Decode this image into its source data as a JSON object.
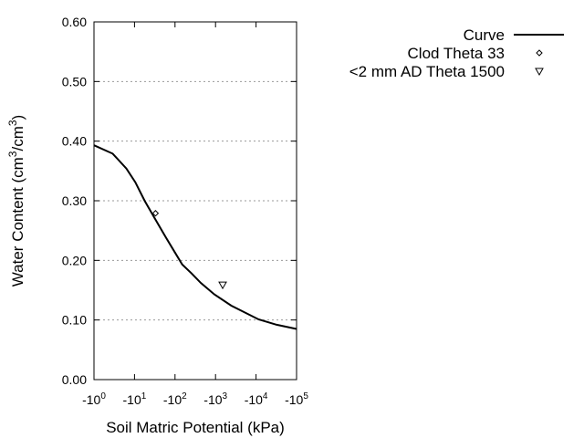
{
  "chart_data": {
    "type": "line",
    "xlabel": "Soil Matric Potential (kPa)",
    "ylabel": "Water Content (cm³/cm³)",
    "ylabel_parts": {
      "pre": "Water Content (cm",
      "sup1": "3",
      "mid": "/cm",
      "sup2": "3",
      "post": ")"
    },
    "x_scale": "log",
    "xlim": [
      1,
      100000
    ],
    "ylim": [
      0,
      0.6
    ],
    "grid": "horizontal dotted",
    "legend_placement": "top-right",
    "xticks": [
      {
        "value": 1,
        "base": "-10",
        "exp": "0"
      },
      {
        "value": 10,
        "base": "-10",
        "exp": "1"
      },
      {
        "value": 100,
        "base": "-10",
        "exp": "2"
      },
      {
        "value": 1000,
        "base": "-10",
        "exp": "3"
      },
      {
        "value": 10000,
        "base": "-10",
        "exp": "4"
      },
      {
        "value": 100000,
        "base": "-10",
        "exp": "5"
      }
    ],
    "yticks": [
      {
        "value": 0,
        "label": "0.00"
      },
      {
        "value": 0.1,
        "label": "0.10"
      },
      {
        "value": 0.2,
        "label": "0.20"
      },
      {
        "value": 0.3,
        "label": "0.30"
      },
      {
        "value": 0.4,
        "label": "0.40"
      },
      {
        "value": 0.5,
        "label": "0.50"
      },
      {
        "value": 0.6,
        "label": "0.60"
      }
    ],
    "series": [
      {
        "name": "Curve",
        "style": "line",
        "color": "#000000",
        "x": [
          1,
          2.9,
          6.3,
          10.5,
          17.8,
          32,
          59,
          100,
          151,
          257,
          437,
          933,
          2455,
          11480,
          32360,
          100000
        ],
        "y": [
          0.393,
          0.379,
          0.354,
          0.331,
          0.3,
          0.27,
          0.239,
          0.213,
          0.193,
          0.178,
          0.162,
          0.143,
          0.124,
          0.101,
          0.092,
          0.085
        ]
      },
      {
        "name": "Clod Theta 33",
        "style": "diamond",
        "color": "#000000",
        "x": [
          33
        ],
        "y": [
          0.279
        ]
      },
      {
        "name": "<2 mm AD Theta 1500",
        "style": "triangle-down",
        "color": "#000000",
        "x": [
          1500
        ],
        "y": [
          0.159
        ]
      }
    ]
  }
}
